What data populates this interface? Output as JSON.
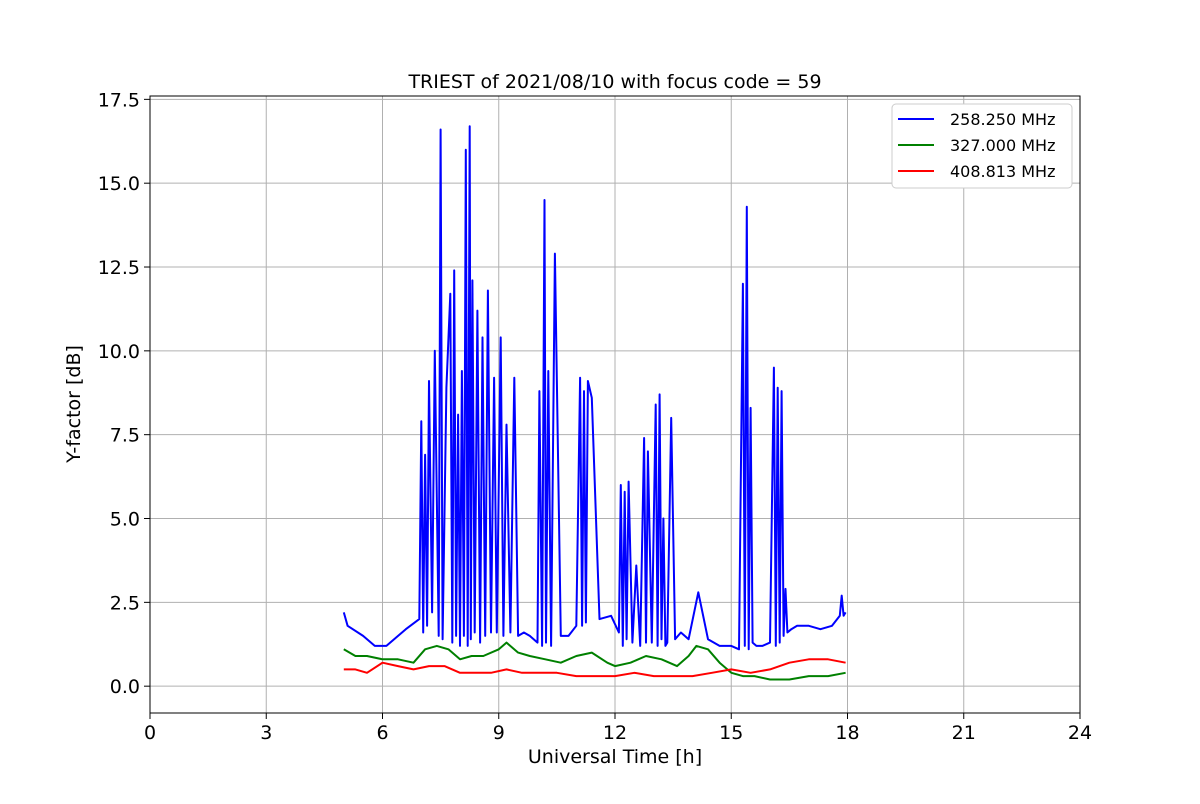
{
  "chart_data": {
    "type": "line",
    "title": "TRIEST of 2021/08/10 with focus code = 59",
    "xlabel": "Universal Time [h]",
    "ylabel": "Y-factor [dB]",
    "xlim": [
      0,
      24
    ],
    "ylim": [
      -0.8,
      17.6
    ],
    "x_ticks": [
      0,
      3,
      6,
      9,
      12,
      15,
      18,
      21,
      24
    ],
    "x_tick_labels": [
      "0",
      "3",
      "6",
      "9",
      "12",
      "15",
      "18",
      "21",
      "24"
    ],
    "y_ticks": [
      0,
      2.5,
      5,
      7.5,
      10,
      12.5,
      15,
      17.5
    ],
    "y_tick_labels": [
      "0.0",
      "2.5",
      "5.0",
      "7.5",
      "10.0",
      "12.5",
      "15.0",
      "17.5"
    ],
    "grid": true,
    "legend_position": "top-right",
    "series": [
      {
        "name": "258.250 MHz",
        "color": "#0000ff",
        "x": [
          5.0,
          5.1,
          5.5,
          5.8,
          6.1,
          6.6,
          6.95,
          7.0,
          7.05,
          7.1,
          7.15,
          7.2,
          7.28,
          7.35,
          7.45,
          7.5,
          7.55,
          7.65,
          7.75,
          7.8,
          7.85,
          7.9,
          7.95,
          8.0,
          8.05,
          8.1,
          8.15,
          8.2,
          8.25,
          8.28,
          8.32,
          8.38,
          8.45,
          8.52,
          8.58,
          8.65,
          8.72,
          8.8,
          8.88,
          8.95,
          9.05,
          9.12,
          9.2,
          9.3,
          9.4,
          9.5,
          9.65,
          9.8,
          10.0,
          10.05,
          10.12,
          10.18,
          10.22,
          10.28,
          10.35,
          10.45,
          10.6,
          10.8,
          11.0,
          11.1,
          11.15,
          11.2,
          11.25,
          11.3,
          11.4,
          11.6,
          11.9,
          12.1,
          12.15,
          12.2,
          12.25,
          12.3,
          12.35,
          12.45,
          12.55,
          12.65,
          12.75,
          12.8,
          12.85,
          12.95,
          13.05,
          13.1,
          13.15,
          13.2,
          13.25,
          13.3,
          13.35,
          13.45,
          13.55,
          13.7,
          13.9,
          14.15,
          14.4,
          14.7,
          15.0,
          15.2,
          15.3,
          15.35,
          15.4,
          15.45,
          15.5,
          15.55,
          15.65,
          15.8,
          16.0,
          16.1,
          16.15,
          16.2,
          16.25,
          16.3,
          16.35,
          16.4,
          16.45,
          16.55,
          16.7,
          17.0,
          17.3,
          17.6,
          17.8,
          17.85,
          17.9,
          17.95
        ],
        "values": [
          2.2,
          1.8,
          1.5,
          1.2,
          1.2,
          1.7,
          2.0,
          7.9,
          1.6,
          6.9,
          1.8,
          9.1,
          2.2,
          10.0,
          1.5,
          16.6,
          1.4,
          8.9,
          11.7,
          1.3,
          12.4,
          1.5,
          8.1,
          1.2,
          9.4,
          1.5,
          16.0,
          1.2,
          16.7,
          1.4,
          12.1,
          1.6,
          11.2,
          1.3,
          10.4,
          1.5,
          11.8,
          1.6,
          9.2,
          1.6,
          10.4,
          1.5,
          7.8,
          1.6,
          9.2,
          1.5,
          1.6,
          1.5,
          1.3,
          8.8,
          1.2,
          14.5,
          1.3,
          9.4,
          1.2,
          12.9,
          1.5,
          1.5,
          1.8,
          9.2,
          1.8,
          8.8,
          1.9,
          9.1,
          8.6,
          2.0,
          2.1,
          1.6,
          6.0,
          1.2,
          5.8,
          1.4,
          6.1,
          1.3,
          3.6,
          1.2,
          7.4,
          1.3,
          7.0,
          1.3,
          8.4,
          1.2,
          8.7,
          1.4,
          5.0,
          1.2,
          1.3,
          8.0,
          1.4,
          1.6,
          1.4,
          2.8,
          1.4,
          1.2,
          1.2,
          1.1,
          12.0,
          1.2,
          14.3,
          1.1,
          8.3,
          1.3,
          1.2,
          1.2,
          1.3,
          9.5,
          1.2,
          8.9,
          1.3,
          8.8,
          1.5,
          2.9,
          1.6,
          1.7,
          1.8,
          1.8,
          1.7,
          1.8,
          2.1,
          2.7,
          2.1,
          2.2
        ]
      },
      {
        "name": "327.000 MHz",
        "color": "#008000",
        "x": [
          5.0,
          5.3,
          5.6,
          6.0,
          6.4,
          6.8,
          7.1,
          7.4,
          7.7,
          8.0,
          8.3,
          8.6,
          9.0,
          9.2,
          9.5,
          9.8,
          10.2,
          10.6,
          11.0,
          11.4,
          11.8,
          12.0,
          12.4,
          12.8,
          13.2,
          13.6,
          13.9,
          14.1,
          14.4,
          14.7,
          15.0,
          15.3,
          15.6,
          16.0,
          16.5,
          17.0,
          17.5,
          17.95
        ],
        "values": [
          1.1,
          0.9,
          0.9,
          0.8,
          0.8,
          0.7,
          1.1,
          1.2,
          1.1,
          0.8,
          0.9,
          0.9,
          1.1,
          1.3,
          1.0,
          0.9,
          0.8,
          0.7,
          0.9,
          1.0,
          0.7,
          0.6,
          0.7,
          0.9,
          0.8,
          0.6,
          0.9,
          1.2,
          1.1,
          0.7,
          0.4,
          0.3,
          0.3,
          0.2,
          0.2,
          0.3,
          0.3,
          0.4
        ]
      },
      {
        "name": "408.813 MHz",
        "color": "#ff0000",
        "x": [
          5.0,
          5.3,
          5.6,
          6.0,
          6.4,
          6.8,
          7.2,
          7.6,
          8.0,
          8.4,
          8.8,
          9.2,
          9.6,
          10.0,
          10.5,
          11.0,
          11.5,
          12.0,
          12.5,
          13.0,
          13.5,
          14.0,
          14.5,
          15.0,
          15.5,
          16.0,
          16.5,
          17.0,
          17.5,
          17.95
        ],
        "values": [
          0.5,
          0.5,
          0.4,
          0.7,
          0.6,
          0.5,
          0.6,
          0.6,
          0.4,
          0.4,
          0.4,
          0.5,
          0.4,
          0.4,
          0.4,
          0.3,
          0.3,
          0.3,
          0.4,
          0.3,
          0.3,
          0.3,
          0.4,
          0.5,
          0.4,
          0.5,
          0.7,
          0.8,
          0.8,
          0.7
        ]
      }
    ]
  }
}
